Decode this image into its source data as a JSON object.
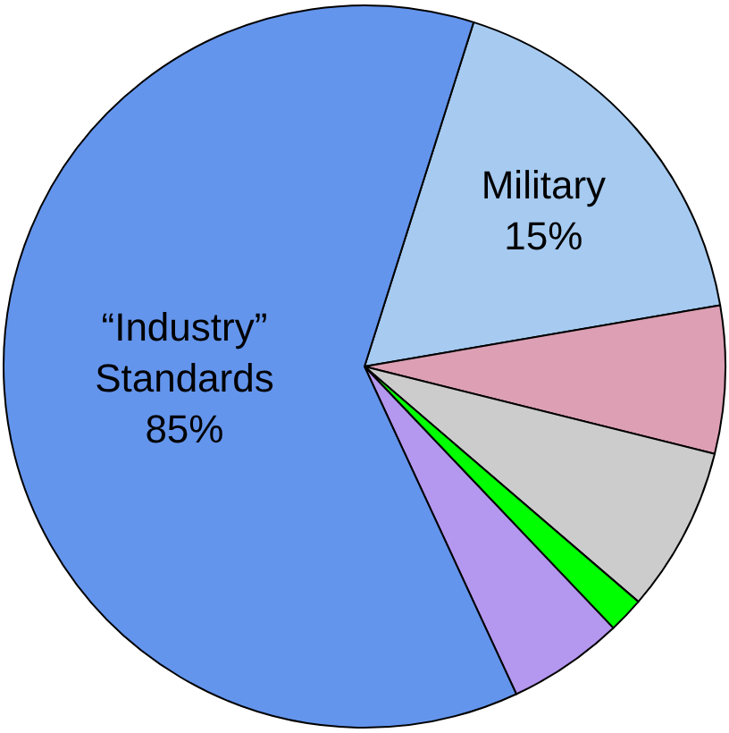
{
  "chart_data": {
    "type": "pie",
    "categories": [
      "Military\n15%",
      null,
      null,
      null,
      null,
      "“Industry”\nStandards\n85%"
    ],
    "values": [
      17.4,
      6.6,
      7.4,
      1.6,
      5.2,
      61.8
    ],
    "colors": [
      "#a6caf0",
      "#dd9fb4",
      "#cccccc",
      "#00ff00",
      "#b497ee",
      "#6495ed"
    ],
    "legend": false
  }
}
